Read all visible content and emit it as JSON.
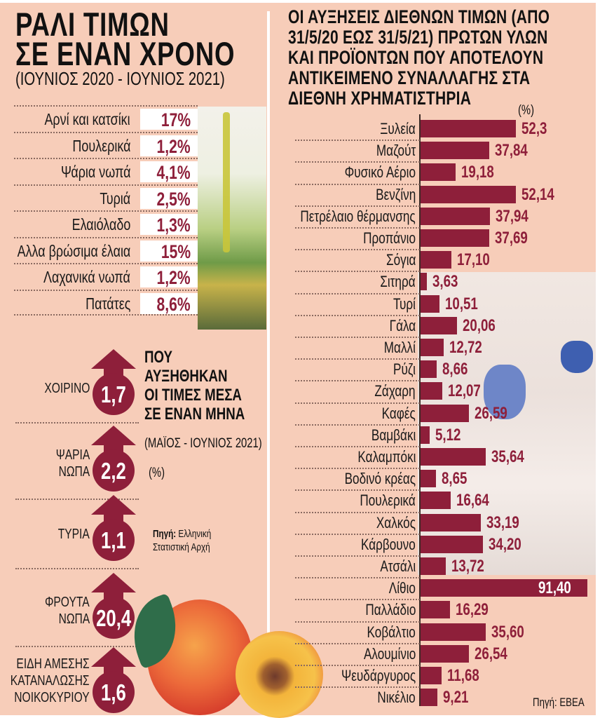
{
  "left": {
    "title_line1": "ΡΑΛΙ ΤΙΜΩΝ",
    "title_line2": "ΣΕ ΕΝΑΝ ΧΡΟΝΟ",
    "subtitle": "(ΙΟΥΝΙΟΣ 2020 - ΙΟΥΝΙΟΣ 2021)",
    "items": [
      {
        "label": "Αρνί και κατσίκι",
        "value": "17%"
      },
      {
        "label": "Πουλερικά",
        "value": "1,2%"
      },
      {
        "label": "Ψάρια νωπά",
        "value": "4,1%"
      },
      {
        "label": "Τυριά",
        "value": "2,5%"
      },
      {
        "label": "Ελαιόλαδο",
        "value": "1,3%"
      },
      {
        "label": "Αλλα βρώσιμα έλαια",
        "value": "15%"
      },
      {
        "label": "Λαχανικά νωπά",
        "value": "1,2%"
      },
      {
        "label": "Πατάτες",
        "value": "8,6%"
      }
    ]
  },
  "monthly": {
    "heading_line1": "ΠΟΥ",
    "heading_line2": "ΑΥΞΗΘΗΚΑΝ",
    "heading_line3": "ΟΙ ΤΙΜΕΣ ΜΕΣΑ",
    "heading_line4": "ΣΕ ΕΝΑΝ ΜΗΝΑ",
    "period": "(ΜΑΪΟΣ - ΙΟΥΝΙΟΣ 2021)",
    "unit": "(%)",
    "source_label": "Πηγή:",
    "source_line1": "Ελληνική",
    "source_line2": "Στατιστική Αρχή",
    "items": [
      {
        "label": "ΧΟΙΡΙΝΟ",
        "value": "1,7"
      },
      {
        "label": "ΨΑΡΙΑ ΝΩΠΑ",
        "value": "2,2"
      },
      {
        "label": "ΤΥΡΙΑ",
        "value": "1,1"
      },
      {
        "label": "ΦΡΟΥΤΑ ΝΩΠΑ",
        "value": "20,4"
      },
      {
        "label": "ΕΙΔΗ ΑΜΕΣΗΣ ΚΑΤΑΝΑΛΩΣΗΣ ΝΟΙΚΟΚΥΡΙΟΥ",
        "value": "1,6"
      }
    ]
  },
  "right": {
    "title_line1": "ΟΙ ΑΥΞΗΣΕΙΣ ΔΙΕΘΝΩΝ ΤΙΜΩΝ (ΑΠΟ",
    "title_line2": "31/5/20 ΕΩΣ 31/5/21) ΠΡΩΤΩΝ ΥΛΩΝ",
    "title_line3": "ΚΑΙ ΠΡΟΪΟΝΤΩΝ ΠΟΥ ΑΠΟΤΕΛΟΥΝ",
    "title_line4": "ΑΝΤΙΚΕΙΜΕΝΟ ΣΥΝΑΛΛΑΓΗΣ ΣΤΑ",
    "title_line5": "ΔΙΕΘΝΗ ΧΡΗΜΑΤΙΣΤΗΡΙΑ",
    "unit": "(%)",
    "source": "Πηγή: ΕΒΕΑ"
  },
  "colors": {
    "background": "#f7cdb9",
    "accent": "#8e1f3a",
    "text": "#111111"
  },
  "chart_data": [
    {
      "type": "table",
      "title": "ΡΑΛΙ ΤΙΜΩΝ ΣΕ ΕΝΑΝ ΧΡΟΝΟ",
      "subtitle": "(ΙΟΥΝΙΟΣ 2020 - ΙΟΥΝΙΟΣ 2021)",
      "categories": [
        "Αρνί και κατσίκι",
        "Πουλερικά",
        "Ψάρια νωπά",
        "Τυριά",
        "Ελαιόλαδο",
        "Αλλα βρώσιμα έλαια",
        "Λαχανικά νωπά",
        "Πατάτες"
      ],
      "values": [
        17,
        1.2,
        4.1,
        2.5,
        1.3,
        15,
        1.2,
        8.6
      ],
      "unit": "%"
    },
    {
      "type": "table",
      "title": "ΠΟΥ ΑΥΞΗΘΗΚΑΝ ΟΙ ΤΙΜΕΣ ΜΕΣΑ ΣΕ ΕΝΑΝ ΜΗΝΑ",
      "subtitle": "(ΜΑΪΟΣ - ΙΟΥΝΙΟΣ 2021)",
      "categories": [
        "ΧΟΙΡΙΝΟ",
        "ΨΑΡΙΑ ΝΩΠΑ",
        "ΤΥΡΙΑ",
        "ΦΡΟΥΤΑ ΝΩΠΑ",
        "ΕΙΔΗ ΑΜΕΣΗΣ ΚΑΤΑΝΑΛΩΣΗΣ ΝΟΙΚΟΚΥΡΙΟΥ"
      ],
      "values": [
        1.7,
        2.2,
        1.1,
        20.4,
        1.6
      ],
      "unit": "%",
      "source": "Πηγή: Ελληνική Στατιστική Αρχή"
    },
    {
      "type": "bar",
      "orientation": "horizontal",
      "title": "ΟΙ ΑΥΞΗΣΕΙΣ ΔΙΕΘΝΩΝ ΤΙΜΩΝ (ΑΠΟ 31/5/20 ΕΩΣ 31/5/21) ΠΡΩΤΩΝ ΥΛΩΝ ΚΑΙ ΠΡΟΪΟΝΤΩΝ ΠΟΥ ΑΠΟΤΕΛΟΥΝ ΑΝΤΙΚΕΙΜΕΝΟ ΣΥΝΑΛΛΑΓΗΣ ΣΤΑ ΔΙΕΘΝΗ ΧΡΗΜΑΤΙΣΤΗΡΙΑ",
      "xlabel": "(%)",
      "ylabel": "",
      "categories": [
        "Ξυλεία",
        "Μαζούτ",
        "Φυσικό Αέριο",
        "Βενζίνη",
        "Πετρέλαιο θέρμανσης",
        "Προπάνιο",
        "Σόγια",
        "Σιτηρά",
        "Τυρί",
        "Γάλα",
        "Μαλλί",
        "Ρύζι",
        "Ζάχαρη",
        "Καφές",
        "Βαμβάκι",
        "Καλαμπόκι",
        "Βοδινό κρέας",
        "Πουλερικά",
        "Χαλκός",
        "Κάρβουνο",
        "Ατσάλι",
        "Λίθιο",
        "Παλλάδιο",
        "Κοβάλτιο",
        "Αλουμίνιο",
        "Ψευδάργυρος",
        "Νικέλιο"
      ],
      "values": [
        52.3,
        37.84,
        19.18,
        52.14,
        37.94,
        37.69,
        17.1,
        3.63,
        10.51,
        20.06,
        12.72,
        8.66,
        12.07,
        26.59,
        5.12,
        35.64,
        8.65,
        16.64,
        33.19,
        34.2,
        13.72,
        91.4,
        16.29,
        35.6,
        26.54,
        11.68,
        9.21
      ],
      "labels": [
        "52,3",
        "37,84",
        "19,18",
        "52,14",
        "37,94",
        "37,69",
        "17,10",
        "3,63",
        "10,51",
        "20,06",
        "12,72",
        "8,66",
        "12,07",
        "26,59",
        "5,12",
        "35,64",
        "8,65",
        "16,64",
        "33,19",
        "34,20",
        "13,72",
        "91,40",
        "16,29",
        "35,60",
        "26,54",
        "11,68",
        "9,21"
      ],
      "xlim": [
        0,
        95
      ],
      "grid": false,
      "legend": "none",
      "source": "Πηγή: ΕΒΕΑ"
    }
  ]
}
